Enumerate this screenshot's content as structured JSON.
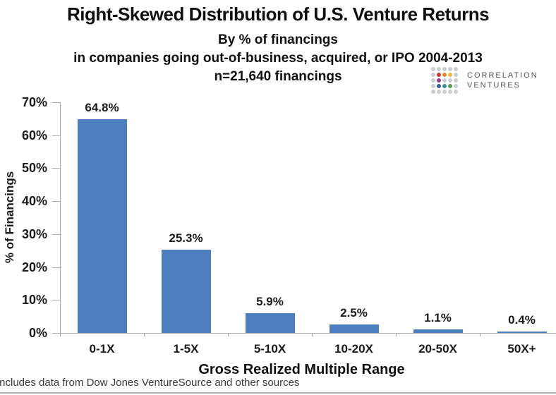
{
  "header": {
    "title": "Right-Skewed Distribution of U.S. Venture Returns",
    "subtitle1": "By % of financings",
    "subtitle2": "in companies going out-of-business, acquired, or IPO 2004-2013",
    "subtitle3": "n=21,640 financings"
  },
  "logo": {
    "line1": "Correlation",
    "line2": "Ventures",
    "dot_grid": [
      [
        "grey",
        "grey",
        "grey",
        "grey",
        "grey"
      ],
      [
        "grey",
        "red",
        "orange",
        "yellow",
        "grey"
      ],
      [
        "grey",
        "purple",
        "grey",
        "grey",
        "grey"
      ],
      [
        "grey",
        "blue",
        "teal",
        "green",
        "grey"
      ],
      [
        "grey",
        "grey",
        "grey",
        "grey",
        "grey"
      ]
    ],
    "dot_colors": {
      "grey": "#c9cdd1",
      "red": "#ce3b2c",
      "orange": "#e8862c",
      "yellow": "#edb63d",
      "purple": "#97378d",
      "blue": "#30609f",
      "teal": "#37918f",
      "green": "#53a046"
    }
  },
  "chart_data": {
    "type": "bar",
    "title": "Right-Skewed Distribution of U.S. Venture Returns",
    "categories": [
      "0-1X",
      "1-5X",
      "5-10X",
      "10-20X",
      "20-50X",
      "50X+"
    ],
    "values": [
      64.8,
      25.3,
      5.9,
      2.5,
      1.1,
      0.4
    ],
    "value_labels": [
      "64.8%",
      "25.3%",
      "5.9%",
      "2.5%",
      "1.1%",
      "0.4%"
    ],
    "xlabel": "Gross Realized Multiple Range",
    "ylabel": "% of Financings",
    "ylim": [
      0,
      70
    ],
    "ytick_step": 10,
    "ytick_labels": [
      "0%",
      "10%",
      "20%",
      "30%",
      "40%",
      "50%",
      "60%",
      "70%"
    ],
    "bar_color": "#4d7ebd",
    "grid": false,
    "legend": "none"
  },
  "footer": {
    "note": "Includes data from Dow Jones VentureSource and other sources"
  }
}
